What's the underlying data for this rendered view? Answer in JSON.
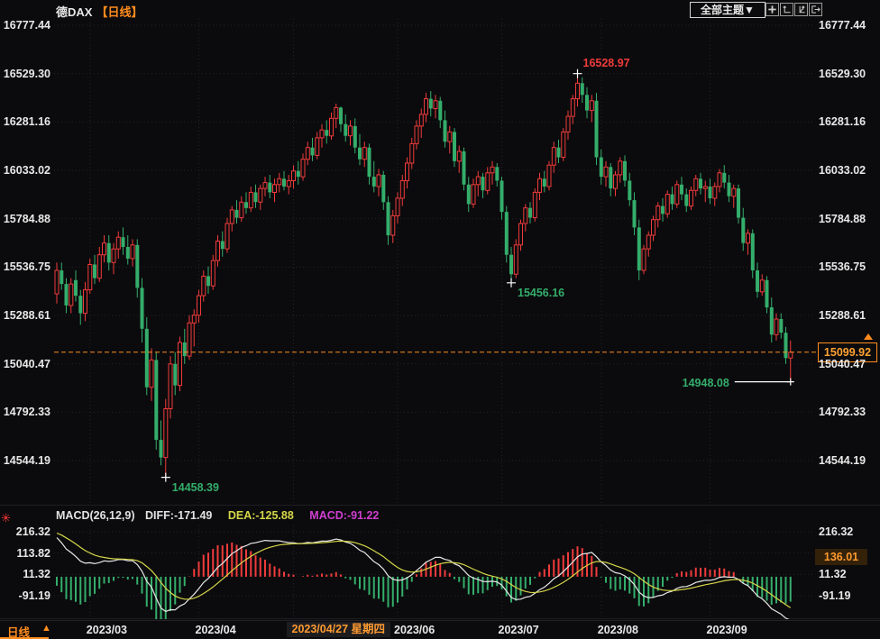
{
  "header": {
    "symbol": "德DAX",
    "period_tag": "【日线】"
  },
  "toolbar": {
    "themes_dropdown_label": "全部主题▼",
    "icons": [
      "pane-layout-icon",
      "axis-scale-left-icon",
      "axis-scale-right-icon",
      "pop-out-icon"
    ]
  },
  "macd": {
    "title": "MACD(26,12,9)",
    "diff_label": "DIFF:-171.49",
    "dea_label": "DEA:-125.88",
    "macd_label": "MACD:-91.22"
  },
  "footer": {
    "period": "日线",
    "arrow": "▲"
  },
  "colors": {
    "up": "#f03b3b",
    "down": "#34ad6b",
    "accent_orange": "#ff8c1e",
    "diff_line": "#e8e8e8",
    "dea_line": "#d6d64a",
    "macd_value_text": "#cf3fcf",
    "axis_text": "#e8e8e8",
    "grid": "#242428"
  },
  "chart_data": {
    "type": "candlestick",
    "symbol": "德DAX",
    "period": "日线",
    "y_axis": {
      "ticks": [
        16777.44,
        16529.3,
        16281.16,
        16033.02,
        15784.88,
        15536.75,
        15288.61,
        15040.47,
        14792.33,
        14544.19
      ],
      "sides": "both"
    },
    "x_axis": {
      "month_labels": [
        {
          "text": "2023/03",
          "index": 7
        },
        {
          "text": "2023/04",
          "index": 30
        },
        {
          "text": "2023/06",
          "index": 72
        },
        {
          "text": "2023/07",
          "index": 94
        },
        {
          "text": "2023/08",
          "index": 115
        },
        {
          "text": "2023/09",
          "index": 138
        }
      ],
      "grid_indices": [
        7,
        30,
        50,
        72,
        94,
        115,
        138
      ],
      "selected_label": {
        "text": "2023/04/27 星期四",
        "index": 50
      }
    },
    "last_price": {
      "value": 15099.92,
      "text": "15099.92"
    },
    "key_points": [
      {
        "label": "16528.97",
        "price": 16528.97,
        "index": 110,
        "color": "up",
        "placement": "top"
      },
      {
        "label": "15456.16",
        "price": 15456.16,
        "index": 96,
        "color": "down",
        "placement": "bottom-right"
      },
      {
        "label": "14458.39",
        "price": 14458.39,
        "index": 23,
        "color": "down",
        "placement": "bottom-right"
      },
      {
        "label": "14948.08",
        "price": 14948.08,
        "index": 155,
        "color": "down",
        "placement": "left-line"
      }
    ],
    "indicator": {
      "name": "MACD",
      "params": [
        26,
        12,
        9
      ],
      "diff": -171.49,
      "dea": -125.88,
      "macd": -91.22,
      "ticks": [
        216.32,
        113.82,
        11.32,
        -91.19
      ],
      "right_boxed_value": "136.01"
    },
    "ohlc": [
      [
        15400,
        15560,
        15350,
        15520
      ],
      [
        15520,
        15560,
        15420,
        15450
      ],
      [
        15450,
        15480,
        15300,
        15340
      ],
      [
        15340,
        15480,
        15300,
        15450
      ],
      [
        15470,
        15520,
        15360,
        15390
      ],
      [
        15390,
        15420,
        15240,
        15300
      ],
      [
        15300,
        15460,
        15260,
        15420
      ],
      [
        15420,
        15580,
        15400,
        15550
      ],
      [
        15550,
        15600,
        15450,
        15480
      ],
      [
        15480,
        15640,
        15460,
        15600
      ],
      [
        15600,
        15700,
        15560,
        15660
      ],
      [
        15660,
        15700,
        15520,
        15560
      ],
      [
        15560,
        15660,
        15500,
        15630
      ],
      [
        15630,
        15720,
        15580,
        15690
      ],
      [
        15690,
        15740,
        15600,
        15640
      ],
      [
        15640,
        15700,
        15550,
        15580
      ],
      [
        15580,
        15680,
        15540,
        15650
      ],
      [
        15650,
        15680,
        15380,
        15430
      ],
      [
        15430,
        15480,
        15150,
        15220
      ],
      [
        15220,
        15280,
        14880,
        14920
      ],
      [
        14920,
        15120,
        14850,
        15060
      ],
      [
        15060,
        15100,
        14600,
        14650
      ],
      [
        14650,
        14750,
        14520,
        14560
      ],
      [
        14560,
        14860,
        14458.39,
        14810
      ],
      [
        14810,
        15080,
        14760,
        15040
      ],
      [
        15040,
        15100,
        14880,
        14930
      ],
      [
        14930,
        15180,
        14900,
        15150
      ],
      [
        15150,
        15220,
        15040,
        15080
      ],
      [
        15080,
        15290,
        15060,
        15250
      ],
      [
        15250,
        15320,
        15130,
        15290
      ],
      [
        15290,
        15420,
        15250,
        15390
      ],
      [
        15390,
        15520,
        15360,
        15490
      ],
      [
        15490,
        15540,
        15400,
        15440
      ],
      [
        15440,
        15600,
        15420,
        15570
      ],
      [
        15570,
        15700,
        15540,
        15670
      ],
      [
        15670,
        15720,
        15590,
        15630
      ],
      [
        15630,
        15790,
        15610,
        15760
      ],
      [
        15760,
        15850,
        15720,
        15830
      ],
      [
        15830,
        15880,
        15760,
        15790
      ],
      [
        15790,
        15900,
        15770,
        15870
      ],
      [
        15870,
        15920,
        15810,
        15840
      ],
      [
        15840,
        15950,
        15820,
        15920
      ],
      [
        15920,
        15960,
        15840,
        15870
      ],
      [
        15870,
        15960,
        15830,
        15940
      ],
      [
        15940,
        16000,
        15900,
        15970
      ],
      [
        15970,
        16010,
        15890,
        15920
      ],
      [
        15920,
        15990,
        15870,
        15960
      ],
      [
        15960,
        16020,
        15920,
        15990
      ],
      [
        15990,
        16030,
        15930,
        15950
      ],
      [
        15950,
        16010,
        15910,
        15980
      ],
      [
        15980,
        16060,
        15940,
        16030
      ],
      [
        16030,
        16080,
        15960,
        16000
      ],
      [
        16000,
        16120,
        15980,
        16090
      ],
      [
        16090,
        16180,
        16060,
        16150
      ],
      [
        16150,
        16200,
        16080,
        16110
      ],
      [
        16110,
        16230,
        16090,
        16200
      ],
      [
        16200,
        16270,
        16150,
        16240
      ],
      [
        16240,
        16290,
        16170,
        16210
      ],
      [
        16210,
        16330,
        16190,
        16300
      ],
      [
        16300,
        16375,
        16250,
        16355
      ],
      [
        16355,
        16360,
        16230,
        16270
      ],
      [
        16270,
        16320,
        16180,
        16210
      ],
      [
        16210,
        16290,
        16160,
        16260
      ],
      [
        16260,
        16300,
        16120,
        16150
      ],
      [
        16150,
        16220,
        16060,
        16090
      ],
      [
        16090,
        16180,
        16050,
        16150
      ],
      [
        16150,
        16170,
        15960,
        16000
      ],
      [
        16000,
        16080,
        15920,
        15950
      ],
      [
        15950,
        16040,
        15900,
        16010
      ],
      [
        16010,
        16030,
        15830,
        15870
      ],
      [
        15870,
        15900,
        15650,
        15700
      ],
      [
        15700,
        15830,
        15660,
        15800
      ],
      [
        15800,
        15920,
        15760,
        15890
      ],
      [
        15890,
        16010,
        15850,
        15980
      ],
      [
        15980,
        16100,
        15940,
        16070
      ],
      [
        16070,
        16200,
        16040,
        16170
      ],
      [
        16170,
        16290,
        16140,
        16260
      ],
      [
        16260,
        16350,
        16200,
        16320
      ],
      [
        16320,
        16430,
        16280,
        16400
      ],
      [
        16400,
        16440,
        16310,
        16350
      ],
      [
        16350,
        16420,
        16300,
        16390
      ],
      [
        16390,
        16410,
        16250,
        16290
      ],
      [
        16290,
        16340,
        16150,
        16180
      ],
      [
        16180,
        16260,
        16120,
        16230
      ],
      [
        16230,
        16250,
        16050,
        16080
      ],
      [
        16080,
        16160,
        16020,
        16130
      ],
      [
        16130,
        16150,
        15930,
        15960
      ],
      [
        15960,
        16000,
        15820,
        15860
      ],
      [
        15860,
        15990,
        15840,
        15960
      ],
      [
        15960,
        16030,
        15900,
        16000
      ],
      [
        16000,
        16020,
        15890,
        15930
      ],
      [
        15930,
        16050,
        15910,
        16020
      ],
      [
        16020,
        16080,
        15960,
        16050
      ],
      [
        16050,
        16070,
        15950,
        15980
      ],
      [
        15980,
        16000,
        15780,
        15820
      ],
      [
        15820,
        15850,
        15560,
        15600
      ],
      [
        15600,
        15640,
        15456.16,
        15500
      ],
      [
        15500,
        15680,
        15480,
        15650
      ],
      [
        15650,
        15780,
        15620,
        15760
      ],
      [
        15760,
        15860,
        15720,
        15840
      ],
      [
        15840,
        15870,
        15760,
        15790
      ],
      [
        15790,
        15940,
        15770,
        15920
      ],
      [
        15920,
        16020,
        15880,
        15990
      ],
      [
        15990,
        16030,
        15920,
        15950
      ],
      [
        15950,
        16080,
        15930,
        16060
      ],
      [
        16060,
        16180,
        16020,
        16150
      ],
      [
        16150,
        16190,
        16070,
        16100
      ],
      [
        16100,
        16250,
        16080,
        16230
      ],
      [
        16230,
        16340,
        16190,
        16310
      ],
      [
        16310,
        16420,
        16270,
        16400
      ],
      [
        16400,
        16528.97,
        16360,
        16480
      ],
      [
        16480,
        16510,
        16380,
        16420
      ],
      [
        16420,
        16460,
        16300,
        16340
      ],
      [
        16340,
        16420,
        16280,
        16390
      ],
      [
        16390,
        16430,
        16060,
        16100
      ],
      [
        16100,
        16140,
        15960,
        16000
      ],
      [
        16000,
        16080,
        15950,
        16050
      ],
      [
        16050,
        16070,
        15900,
        15940
      ],
      [
        15940,
        16030,
        15900,
        16010
      ],
      [
        16010,
        16100,
        15970,
        16080
      ],
      [
        16080,
        16110,
        15950,
        15980
      ],
      [
        15980,
        16020,
        15850,
        15880
      ],
      [
        15880,
        15920,
        15700,
        15740
      ],
      [
        15740,
        15780,
        15470,
        15520
      ],
      [
        15520,
        15650,
        15500,
        15630
      ],
      [
        15630,
        15720,
        15590,
        15700
      ],
      [
        15700,
        15800,
        15670,
        15780
      ],
      [
        15780,
        15870,
        15740,
        15850
      ],
      [
        15850,
        15890,
        15770,
        15810
      ],
      [
        15810,
        15930,
        15790,
        15910
      ],
      [
        15910,
        15950,
        15830,
        15860
      ],
      [
        15860,
        15980,
        15840,
        15960
      ],
      [
        15960,
        16000,
        15880,
        15910
      ],
      [
        15910,
        15940,
        15820,
        15850
      ],
      [
        15850,
        15950,
        15830,
        15930
      ],
      [
        15930,
        16010,
        15900,
        15990
      ],
      [
        15990,
        16020,
        15910,
        15940
      ],
      [
        15940,
        15980,
        15870,
        15950
      ],
      [
        15950,
        15990,
        15860,
        15890
      ],
      [
        15890,
        15970,
        15850,
        15950
      ],
      [
        15950,
        16040,
        15920,
        16020
      ],
      [
        16020,
        16060,
        15940,
        15970
      ],
      [
        15970,
        16010,
        15870,
        15900
      ],
      [
        15900,
        15960,
        15840,
        15940
      ],
      [
        15940,
        15960,
        15760,
        15790
      ],
      [
        15790,
        15840,
        15620,
        15660
      ],
      [
        15660,
        15730,
        15600,
        15710
      ],
      [
        15710,
        15730,
        15480,
        15520
      ],
      [
        15520,
        15560,
        15380,
        15410
      ],
      [
        15410,
        15500,
        15390,
        15470
      ],
      [
        15470,
        15490,
        15300,
        15330
      ],
      [
        15330,
        15380,
        15150,
        15190
      ],
      [
        15190,
        15300,
        15160,
        15270
      ],
      [
        15270,
        15300,
        15170,
        15200
      ],
      [
        15200,
        15230,
        15040,
        15070
      ],
      [
        15070,
        15160,
        14948.08,
        15099.92
      ]
    ]
  }
}
